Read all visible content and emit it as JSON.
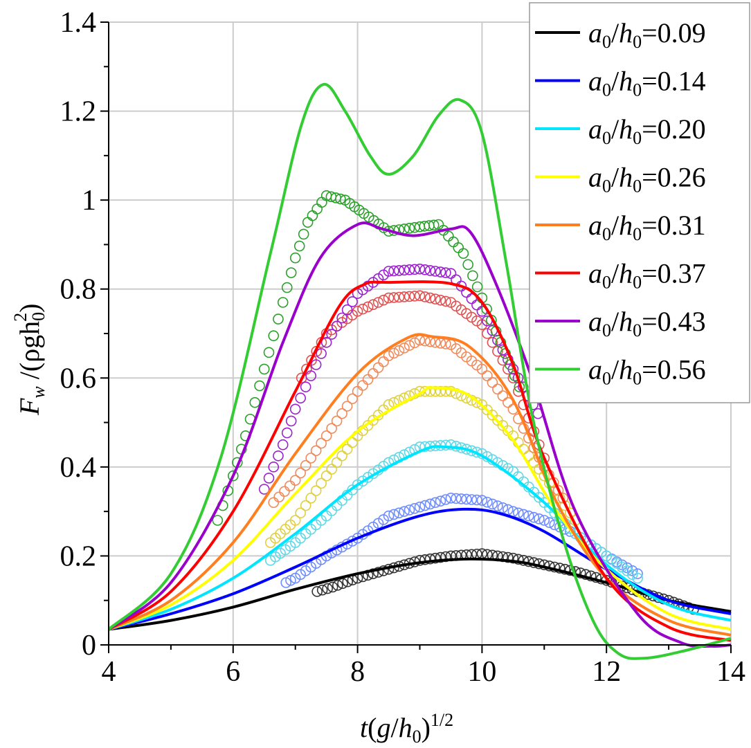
{
  "chart_data": {
    "type": "line",
    "title": "",
    "xlabel": "t(g/h0)^1/2",
    "xlabel_parts": {
      "t": "t",
      "g": "g",
      "h": "h",
      "sub0": "0",
      "sup": "1/2"
    },
    "ylabel": "Fw /(ρgh0^2)",
    "ylabel_parts": {
      "F": "F",
      "w": "w",
      "rest": " /(ρgh",
      "sub0": "0",
      "sup2": "2",
      "close": ")"
    },
    "xlim": [
      4,
      14
    ],
    "ylim": [
      0,
      1.4
    ],
    "grid": true,
    "legend_position": "top-right",
    "x_ticks": [
      {
        "v": 4,
        "label": "4"
      },
      {
        "v": 6,
        "label": "6"
      },
      {
        "v": 8,
        "label": "8"
      },
      {
        "v": 10,
        "label": "10"
      },
      {
        "v": 12,
        "label": "12"
      },
      {
        "v": 14,
        "label": "14"
      }
    ],
    "y_ticks": [
      {
        "v": 0,
        "label": "0"
      },
      {
        "v": 0.2,
        "label": "0.2"
      },
      {
        "v": 0.4,
        "label": "0.4"
      },
      {
        "v": 0.6,
        "label": "0.6"
      },
      {
        "v": 0.8,
        "label": "0.8"
      },
      {
        "v": 1.0,
        "label": "1"
      },
      {
        "v": 1.2,
        "label": "1.2"
      },
      {
        "v": 1.4,
        "label": "1.4"
      }
    ],
    "series": [
      {
        "name": "a0/h0=0.09",
        "value": "0.09",
        "color": "#000000",
        "marker_color": "#333333",
        "line": [
          [
            4,
            0.035
          ],
          [
            5,
            0.055
          ],
          [
            6,
            0.085
          ],
          [
            7,
            0.125
          ],
          [
            8,
            0.16
          ],
          [
            9,
            0.185
          ],
          [
            9.8,
            0.193
          ],
          [
            10.5,
            0.188
          ],
          [
            11,
            0.175
          ],
          [
            12,
            0.14
          ],
          [
            13,
            0.1
          ],
          [
            14,
            0.075
          ]
        ],
        "markers": [
          [
            7.35,
            0.12
          ],
          [
            7.6,
            0.13
          ],
          [
            8,
            0.15
          ],
          [
            8.5,
            0.17
          ],
          [
            9,
            0.19
          ],
          [
            9.5,
            0.2
          ],
          [
            10,
            0.205
          ],
          [
            10.5,
            0.195
          ],
          [
            11,
            0.18
          ],
          [
            11.5,
            0.165
          ],
          [
            12,
            0.145
          ],
          [
            12.5,
            0.12
          ],
          [
            13,
            0.1
          ],
          [
            13.4,
            0.08
          ]
        ]
      },
      {
        "name": "a0/h0=0.14",
        "value": "0.14",
        "color": "#0000ff",
        "marker_color": "#6d8cff",
        "line": [
          [
            4,
            0.035
          ],
          [
            5,
            0.07
          ],
          [
            6,
            0.115
          ],
          [
            7,
            0.175
          ],
          [
            8,
            0.24
          ],
          [
            9,
            0.29
          ],
          [
            9.7,
            0.305
          ],
          [
            10.3,
            0.295
          ],
          [
            11,
            0.255
          ],
          [
            12,
            0.17
          ],
          [
            13,
            0.1
          ],
          [
            14,
            0.07
          ]
        ],
        "markers": [
          [
            6.85,
            0.14
          ],
          [
            7,
            0.15
          ],
          [
            7.5,
            0.2
          ],
          [
            8,
            0.24
          ],
          [
            8.5,
            0.29
          ],
          [
            9,
            0.31
          ],
          [
            9.5,
            0.33
          ],
          [
            10,
            0.325
          ],
          [
            10.5,
            0.3
          ],
          [
            11,
            0.28
          ],
          [
            11.5,
            0.25
          ],
          [
            12,
            0.2
          ],
          [
            12.5,
            0.16
          ]
        ]
      },
      {
        "name": "a0/h0=0.20",
        "value": "0.20",
        "color": "#00e5ff",
        "marker_color": "#5fd7e6",
        "line": [
          [
            4,
            0.035
          ],
          [
            5,
            0.08
          ],
          [
            6,
            0.15
          ],
          [
            7,
            0.25
          ],
          [
            8,
            0.36
          ],
          [
            9,
            0.435
          ],
          [
            9.4,
            0.445
          ],
          [
            10,
            0.425
          ],
          [
            11,
            0.32
          ],
          [
            12,
            0.18
          ],
          [
            13,
            0.09
          ],
          [
            14,
            0.055
          ]
        ],
        "markers": [
          [
            6.6,
            0.19
          ],
          [
            7,
            0.23
          ],
          [
            7.5,
            0.29
          ],
          [
            8,
            0.36
          ],
          [
            8.5,
            0.41
          ],
          [
            9,
            0.445
          ],
          [
            9.5,
            0.45
          ],
          [
            10,
            0.43
          ],
          [
            10.5,
            0.39
          ],
          [
            11,
            0.32
          ],
          [
            11.5,
            0.25
          ],
          [
            12,
            0.2
          ],
          [
            12.5,
            0.15
          ]
        ]
      },
      {
        "name": "a0/h0=0.26",
        "value": "0.26",
        "color": "#ffff00",
        "marker_color": "#e0d040",
        "line": [
          [
            4,
            0.035
          ],
          [
            5,
            0.09
          ],
          [
            6,
            0.19
          ],
          [
            7,
            0.34
          ],
          [
            8,
            0.48
          ],
          [
            9,
            0.565
          ],
          [
            9.2,
            0.578
          ],
          [
            9.8,
            0.56
          ],
          [
            10.5,
            0.46
          ],
          [
            11.2,
            0.3
          ],
          [
            12,
            0.17
          ],
          [
            13,
            0.07
          ],
          [
            14,
            0.035
          ]
        ],
        "markers": [
          [
            6.6,
            0.23
          ],
          [
            7,
            0.28
          ],
          [
            7.5,
            0.38
          ],
          [
            8,
            0.47
          ],
          [
            8.5,
            0.54
          ],
          [
            9,
            0.57
          ],
          [
            9.5,
            0.57
          ],
          [
            10,
            0.54
          ],
          [
            10.5,
            0.47
          ],
          [
            11,
            0.38
          ],
          [
            11.5,
            0.28
          ]
        ]
      },
      {
        "name": "a0/h0=0.31",
        "value": "0.31",
        "color": "#ff7f20",
        "marker_color": "#f08a5a",
        "line": [
          [
            4,
            0.035
          ],
          [
            5,
            0.1
          ],
          [
            6,
            0.23
          ],
          [
            7,
            0.43
          ],
          [
            8,
            0.61
          ],
          [
            8.8,
            0.69
          ],
          [
            9.2,
            0.693
          ],
          [
            9.8,
            0.67
          ],
          [
            10.5,
            0.55
          ],
          [
            11.2,
            0.32
          ],
          [
            12,
            0.15
          ],
          [
            13,
            0.055
          ],
          [
            14,
            0.022
          ]
        ],
        "markers": [
          [
            6.65,
            0.32
          ],
          [
            7,
            0.37
          ],
          [
            7.5,
            0.47
          ],
          [
            8,
            0.57
          ],
          [
            8.5,
            0.65
          ],
          [
            9,
            0.685
          ],
          [
            9.5,
            0.675
          ],
          [
            10,
            0.62
          ],
          [
            10.5,
            0.53
          ],
          [
            11,
            0.4
          ],
          [
            11.3,
            0.33
          ]
        ]
      },
      {
        "name": "a0/h0=0.37",
        "value": "0.37",
        "color": "#ff0000",
        "marker_color": "#e05050",
        "line": [
          [
            4,
            0.035
          ],
          [
            5,
            0.12
          ],
          [
            6,
            0.3
          ],
          [
            7,
            0.57
          ],
          [
            7.7,
            0.76
          ],
          [
            8.1,
            0.81
          ],
          [
            8.5,
            0.815
          ],
          [
            9.5,
            0.812
          ],
          [
            10,
            0.77
          ],
          [
            10.5,
            0.63
          ],
          [
            11,
            0.42
          ],
          [
            12,
            0.15
          ],
          [
            13,
            0.04
          ],
          [
            14,
            0.01
          ]
        ],
        "markers": [
          [
            7.1,
            0.6
          ],
          [
            7.5,
            0.7
          ],
          [
            8,
            0.75
          ],
          [
            8.5,
            0.78
          ],
          [
            9,
            0.785
          ],
          [
            9.5,
            0.77
          ],
          [
            10,
            0.72
          ],
          [
            10.5,
            0.6
          ],
          [
            11,
            0.42
          ]
        ]
      },
      {
        "name": "a0/h0=0.43",
        "value": "0.43",
        "color": "#9900cc",
        "marker_color": "#9a20d0",
        "line": [
          [
            4,
            0.035
          ],
          [
            5,
            0.14
          ],
          [
            6,
            0.38
          ],
          [
            6.8,
            0.68
          ],
          [
            7.4,
            0.87
          ],
          [
            8,
            0.945
          ],
          [
            8.4,
            0.935
          ],
          [
            8.9,
            0.92
          ],
          [
            9.5,
            0.935
          ],
          [
            9.8,
            0.93
          ],
          [
            10.2,
            0.82
          ],
          [
            10.8,
            0.6
          ],
          [
            11.5,
            0.3
          ],
          [
            12.5,
            0.07
          ],
          [
            13.2,
            0.005
          ],
          [
            13.7,
            -0.003
          ],
          [
            14,
            0.0
          ]
        ],
        "markers": [
          [
            6.5,
            0.35
          ],
          [
            6.8,
            0.45
          ],
          [
            7,
            0.53
          ],
          [
            7.5,
            0.68
          ],
          [
            8,
            0.79
          ],
          [
            8.5,
            0.84
          ],
          [
            9,
            0.845
          ],
          [
            9.5,
            0.835
          ],
          [
            10,
            0.75
          ],
          [
            10.5,
            0.62
          ],
          [
            10.9,
            0.52
          ]
        ]
      },
      {
        "name": "a0/h0=0.56",
        "value": "0.56",
        "color": "#33cc33",
        "marker_color": "#2aa02a",
        "line": [
          [
            4,
            0.035
          ],
          [
            5,
            0.16
          ],
          [
            5.8,
            0.42
          ],
          [
            6.6,
            0.88
          ],
          [
            7.1,
            1.17
          ],
          [
            7.45,
            1.26
          ],
          [
            7.8,
            1.2
          ],
          [
            8.2,
            1.1
          ],
          [
            8.5,
            1.058
          ],
          [
            8.9,
            1.1
          ],
          [
            9.3,
            1.19
          ],
          [
            9.65,
            1.225
          ],
          [
            10,
            1.15
          ],
          [
            10.4,
            0.85
          ],
          [
            10.8,
            0.52
          ],
          [
            11.3,
            0.24
          ],
          [
            11.8,
            0.05
          ],
          [
            12.2,
            -0.02
          ],
          [
            12.6,
            -0.03
          ],
          [
            13.2,
            -0.015
          ],
          [
            14,
            0.015
          ]
        ],
        "markers": [
          [
            5.75,
            0.28
          ],
          [
            6,
            0.38
          ],
          [
            6.2,
            0.47
          ],
          [
            6.5,
            0.62
          ],
          [
            6.8,
            0.77
          ],
          [
            7,
            0.87
          ],
          [
            7.2,
            0.95
          ],
          [
            7.5,
            1.01
          ],
          [
            7.8,
            1.0
          ],
          [
            8.1,
            0.97
          ],
          [
            8.5,
            0.93
          ],
          [
            9,
            0.94
          ],
          [
            9.3,
            0.945
          ],
          [
            9.7,
            0.88
          ],
          [
            10,
            0.78
          ],
          [
            10.3,
            0.68
          ],
          [
            10.6,
            0.58
          ]
        ]
      }
    ]
  }
}
